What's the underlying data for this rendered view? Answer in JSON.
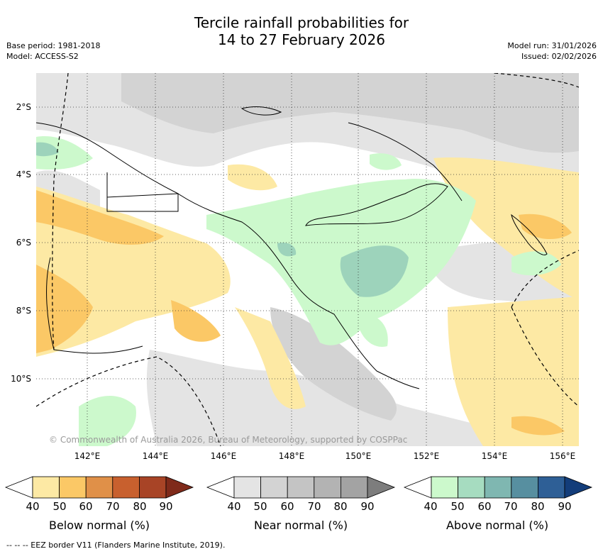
{
  "title": {
    "line1": "Tercile rainfall probabilities for",
    "line2": "14 to 27 February 2026"
  },
  "meta": {
    "base_period": "Base period: 1981-2018",
    "model": "Model: ACCESS-S2",
    "model_run": "Model run: 31/01/2026",
    "issued": "Issued: 02/02/2026"
  },
  "map": {
    "lat_labels": [
      "2°S",
      "4°S",
      "6°S",
      "8°S",
      "10°S"
    ],
    "lon_labels": [
      "142°E",
      "144°E",
      "146°E",
      "148°E",
      "150°E",
      "152°E",
      "154°E",
      "156°E"
    ],
    "copyright": "© Commonwealth of Australia 2026, Bureau of Meteorology, supported by COSPPac",
    "colors": {
      "below_50": "#fde9a4",
      "below_60": "#fbc866",
      "near_50": "#e4e4e4",
      "near_60": "#d3d3d3",
      "above_50": "#ccf9cc",
      "above_60": "#9dd3bb"
    }
  },
  "colorbars": [
    {
      "label": "Below normal (%)",
      "ticks": [
        "40",
        "50",
        "60",
        "70",
        "80",
        "90"
      ],
      "colors": [
        "#ffffff",
        "#fde9a4",
        "#fbc866",
        "#e09048",
        "#c8602e",
        "#a84426",
        "#7f2a1a"
      ]
    },
    {
      "label": "Near normal (%)",
      "ticks": [
        "40",
        "50",
        "60",
        "70",
        "80",
        "90"
      ],
      "colors": [
        "#ffffff",
        "#e4e4e4",
        "#d3d3d3",
        "#c4c4c4",
        "#b3b3b3",
        "#a3a3a3",
        "#7d7d7d"
      ]
    },
    {
      "label": "Above normal (%)",
      "ticks": [
        "40",
        "50",
        "60",
        "70",
        "80",
        "90"
      ],
      "colors": [
        "#ffffff",
        "#ccf9cc",
        "#a6dcc0",
        "#7fb7b1",
        "#578fa0",
        "#2e5f96",
        "#133d7a"
      ]
    }
  ],
  "footnote": "--  --  -- EEZ border V11 (Flanders Marine Institute, 2019)."
}
